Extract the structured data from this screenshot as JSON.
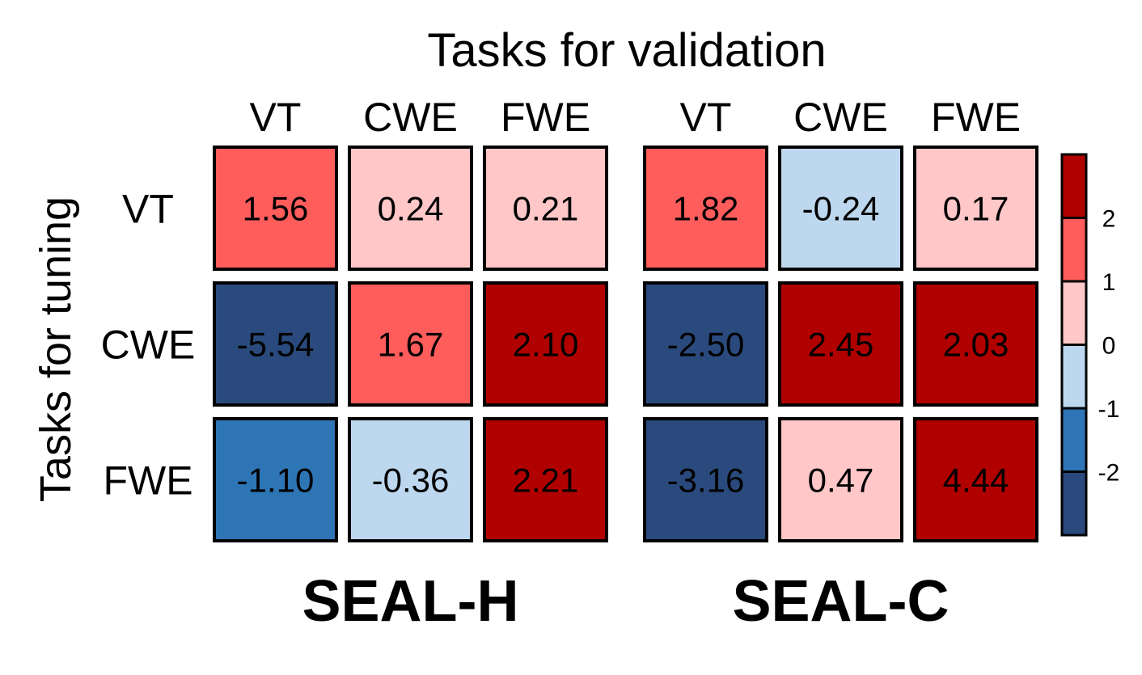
{
  "chart_data": {
    "type": "heatmap",
    "title": "Tasks for validation",
    "ylabel": "Tasks for tuning",
    "row_labels": [
      "VT",
      "CWE",
      "FWE"
    ],
    "col_labels": [
      "VT",
      "CWE",
      "FWE"
    ],
    "panels": [
      {
        "name": "SEAL-H",
        "values": [
          [
            1.56,
            0.24,
            0.21
          ],
          [
            -5.54,
            1.67,
            2.1
          ],
          [
            -1.1,
            -0.36,
            2.21
          ]
        ],
        "labels": [
          [
            "1.56",
            "0.24",
            "0.21"
          ],
          [
            "-5.54",
            "1.67",
            "2.10"
          ],
          [
            "-1.10",
            "-0.36",
            "2.21"
          ]
        ]
      },
      {
        "name": "SEAL-C",
        "values": [
          [
            1.82,
            -0.24,
            0.17
          ],
          [
            -2.5,
            2.45,
            2.03
          ],
          [
            -3.16,
            0.47,
            4.44
          ]
        ],
        "labels": [
          [
            "1.82",
            "-0.24",
            "0.17"
          ],
          [
            "-2.50",
            "2.45",
            "2.03"
          ],
          [
            "-3.16",
            "0.47",
            "4.44"
          ]
        ]
      }
    ],
    "colorbar": {
      "ticks": [
        "2",
        "1",
        "0",
        "-1",
        "-2"
      ],
      "bins": [
        {
          "min": 2,
          "max": null,
          "color": "#b00000"
        },
        {
          "min": 1,
          "max": 2,
          "color": "#ff5c5c"
        },
        {
          "min": 0,
          "max": 1,
          "color": "#ffc7c7"
        },
        {
          "min": -1,
          "max": 0,
          "color": "#bdd7ee"
        },
        {
          "min": -2,
          "max": -1,
          "color": "#2e75b6"
        },
        {
          "min": null,
          "max": -2,
          "color": "#2a4a7d"
        }
      ]
    }
  }
}
